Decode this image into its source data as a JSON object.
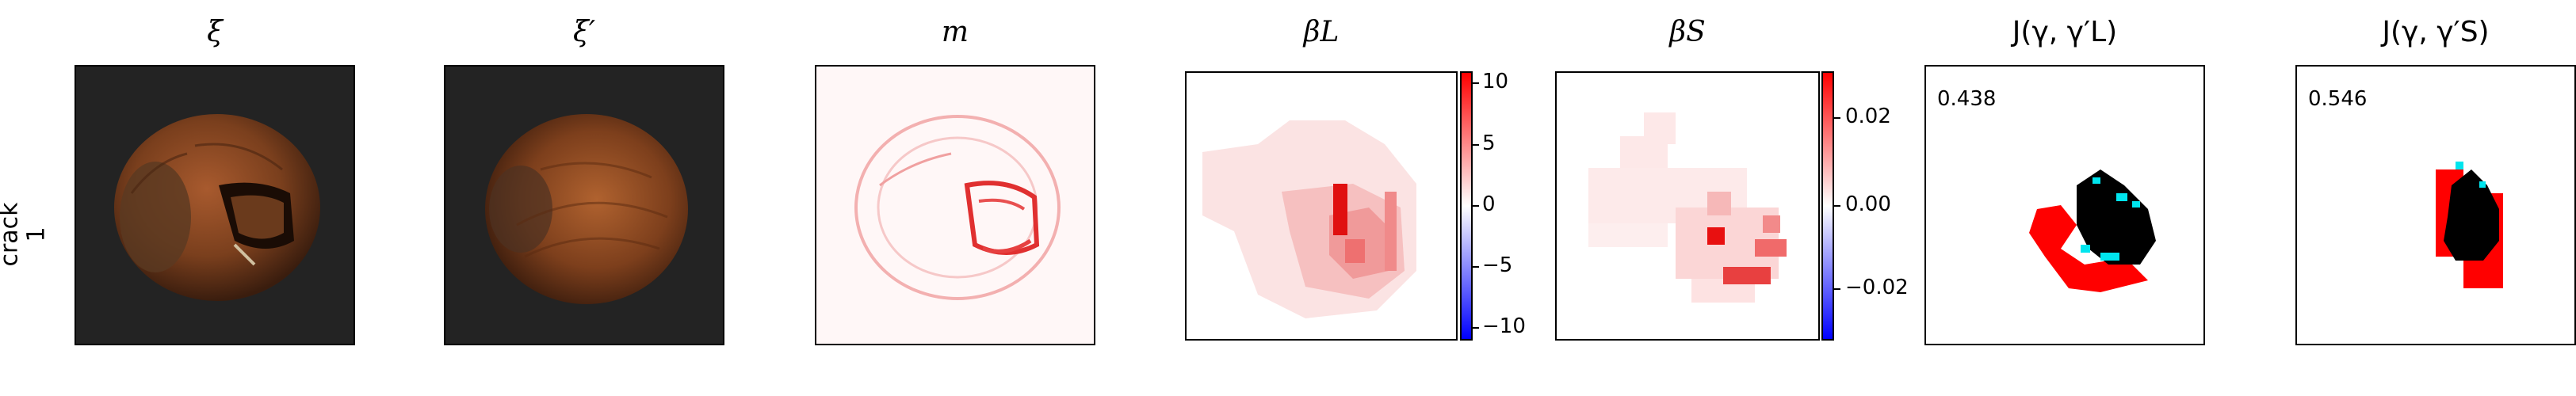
{
  "row": {
    "label_line1": "crack",
    "label_line2": "1"
  },
  "panels": {
    "xi": {
      "title": "ξ"
    },
    "xi_prime": {
      "title": "ξ′"
    },
    "m": {
      "title": "m"
    },
    "beta_L": {
      "title": "βL",
      "colorbar_ticks": [
        "10",
        "5",
        "0",
        "−5",
        "−10"
      ]
    },
    "beta_S": {
      "title": "βS",
      "colorbar_ticks": [
        "0.02",
        "0.00",
        "−0.02"
      ]
    },
    "J_L": {
      "title": "J(γ, γ′L)",
      "score": "0.438"
    },
    "J_S": {
      "title": "J(γ, γ′S)",
      "score": "0.546"
    }
  },
  "colors": {
    "nut_dark": "#3a1f10",
    "nut_light": "#8a4a25",
    "background_dark": "#222222",
    "heat_red": "#e01010",
    "mask_red": "#ff0000",
    "mask_black": "#000000",
    "mask_cyan": "#00e5ee"
  }
}
